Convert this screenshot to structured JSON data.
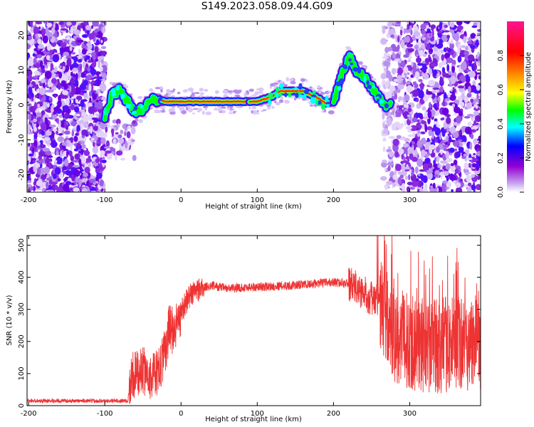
{
  "title": "S149.2023.058.09.44.G09",
  "chart_data": [
    {
      "type": "heatmap",
      "xlabel": "Height of straight line (km)",
      "ylabel": "Frequency (Hz)",
      "xlim": [
        -202,
        393
      ],
      "ylim": [
        -25,
        24
      ],
      "xticks": [
        "-200",
        "-100",
        "0",
        "100",
        "200",
        "300"
      ],
      "yticks": [
        "-20",
        "-10",
        "0",
        "10",
        "20"
      ],
      "colorbar": {
        "label": "Normalized spectral amplitude",
        "range": [
          0,
          1
        ],
        "ticks": [
          "0.0",
          "0.2",
          "0.4",
          "0.6",
          "0.8"
        ],
        "colors": [
          "#ffffff",
          "#9400d3",
          "#0000ff",
          "#00ffff",
          "#00ff00",
          "#ffff00",
          "#ff7f00",
          "#ff0000",
          "#ff1493"
        ]
      },
      "ridge": {
        "x": [
          -100,
          -90,
          -80,
          -70,
          -60,
          -50,
          -40,
          -30,
          -20,
          0,
          50,
          100,
          120,
          130,
          150,
          160,
          170,
          180,
          190,
          200,
          210,
          220,
          230,
          240,
          250,
          260,
          270
        ],
        "y": [
          -3,
          3,
          4,
          1,
          -2,
          -1,
          1,
          1.5,
          1,
          1,
          1,
          1,
          2.5,
          4,
          4,
          4,
          3,
          2,
          0.5,
          1,
          8,
          14,
          10,
          8,
          5,
          2,
          0
        ]
      }
    },
    {
      "type": "line",
      "xlabel": "Height of straight line (km)",
      "ylabel": "SNR (10 * v/v)",
      "xlim": [
        -202,
        393
      ],
      "ylim": [
        0,
        530
      ],
      "xticks": [
        "-200",
        "-100",
        "0",
        "100",
        "200",
        "300"
      ],
      "yticks": [
        "0",
        "100",
        "200",
        "300",
        "400",
        "500"
      ],
      "color": "#ee3333",
      "series": [
        {
          "x": [
            -200,
            -150,
            -100,
            -70,
            -65,
            -50,
            -40,
            -30,
            -20,
            -15,
            -10,
            0,
            10,
            20,
            40,
            60,
            100,
            150,
            200,
            220,
            240,
            260,
            280,
            300,
            320,
            350,
            393
          ],
          "y": [
            15,
            15,
            15,
            15,
            90,
            110,
            90,
            100,
            180,
            250,
            230,
            290,
            340,
            360,
            375,
            365,
            370,
            375,
            385,
            380,
            350,
            320,
            220,
            200,
            180,
            190,
            200
          ]
        }
      ]
    }
  ]
}
